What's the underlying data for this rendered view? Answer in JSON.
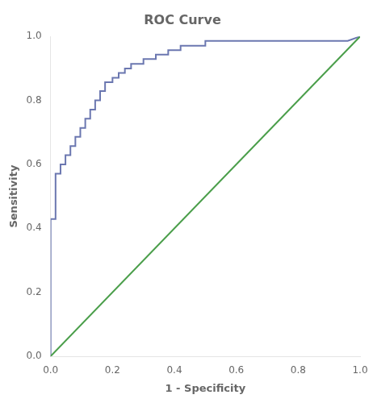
{
  "chart_data": {
    "type": "line",
    "title": "ROC Curve",
    "xlabel": "1 - Specificity",
    "ylabel": "Sensitivity",
    "xlim": [
      0.0,
      1.0
    ],
    "ylim": [
      0.0,
      1.0
    ],
    "xticks": [
      {
        "value": 0.0,
        "label": "0.0"
      },
      0.2,
      0.4,
      0.6,
      0.8,
      {
        "value": 1.0,
        "label": "1.0"
      }
    ],
    "yticks": [
      {
        "value": 0.0,
        "label": "0.0"
      },
      0.2,
      0.4,
      0.6,
      0.8,
      {
        "value": 1.0,
        "label": "1.0"
      }
    ],
    "grid": false,
    "series": [
      {
        "color": "#4a9e4a",
        "x": [
          0,
          1
        ],
        "values": [
          0,
          1
        ]
      },
      {
        "color": "#6b77b0",
        "x": [
          0.0,
          0.0,
          0.016,
          0.016,
          0.032,
          0.032,
          0.048,
          0.048,
          0.064,
          0.064,
          0.08,
          0.08,
          0.096,
          0.096,
          0.112,
          0.112,
          0.128,
          0.128,
          0.144,
          0.144,
          0.16,
          0.16,
          0.176,
          0.176,
          0.2,
          0.2,
          0.22,
          0.22,
          0.24,
          0.24,
          0.26,
          0.26,
          0.3,
          0.3,
          0.34,
          0.34,
          0.38,
          0.38,
          0.42,
          0.42,
          0.46,
          0.46,
          0.5,
          0.5,
          0.56,
          0.56,
          0.62,
          0.62,
          0.7,
          0.7,
          0.78,
          0.78,
          0.86,
          0.86,
          0.92,
          0.92,
          0.96,
          0.96,
          1.0
        ],
        "values": [
          0.0,
          0.429,
          0.429,
          0.571,
          0.571,
          0.6,
          0.6,
          0.629,
          0.629,
          0.657,
          0.657,
          0.686,
          0.686,
          0.714,
          0.714,
          0.743,
          0.743,
          0.771,
          0.771,
          0.8,
          0.8,
          0.829,
          0.829,
          0.857,
          0.857,
          0.871,
          0.871,
          0.886,
          0.886,
          0.9,
          0.9,
          0.914,
          0.914,
          0.929,
          0.929,
          0.943,
          0.943,
          0.957,
          0.957,
          0.971,
          0.971,
          0.971,
          0.971,
          0.986,
          0.986,
          0.986,
          0.986,
          0.986,
          0.986,
          0.986,
          0.986,
          0.986,
          0.986,
          0.986,
          0.986,
          0.986,
          0.986,
          0.986,
          1.0
        ]
      }
    ]
  }
}
